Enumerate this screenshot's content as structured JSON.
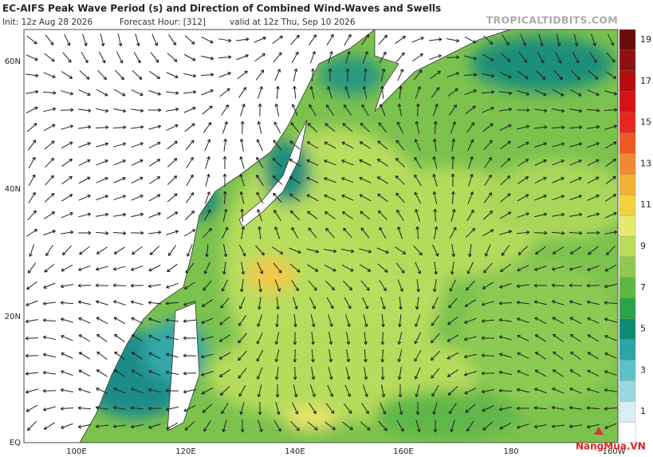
{
  "header": {
    "title": "EC-AIFS Peak Wave Period (s) and Direction of Combined Wind-Waves and Swells",
    "init": "Init: 12z Aug 28 2026",
    "forecast_hour": "Forecast Hour: [312]",
    "valid": "valid at 12z Thu, Sep 10 2026",
    "site": "TROPICALTIDBITS.COM"
  },
  "map": {
    "lat_labels": [
      "60N",
      "40N",
      "20N",
      "EQ"
    ],
    "lon_labels": [
      "100E",
      "120E",
      "140E",
      "160E",
      "180",
      "160W"
    ]
  },
  "colorbar": {
    "labels": [
      19,
      17,
      15,
      13,
      11,
      9,
      7,
      5,
      3,
      1
    ]
  },
  "watermark": "NangMua.VN"
}
